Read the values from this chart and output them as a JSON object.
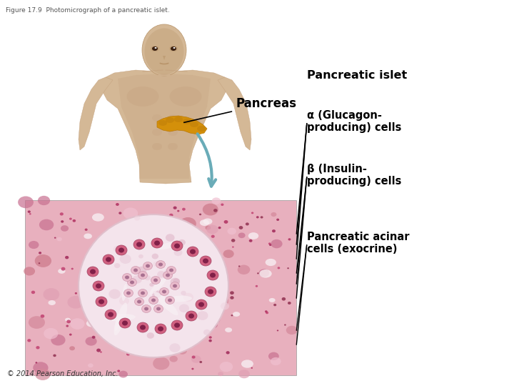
{
  "title": "Figure 17.9  Photomicrograph of a pancreatic islet.",
  "title_fontsize": 6.5,
  "title_color": "#555555",
  "background_color": "#ffffff",
  "pancreas_label": "Pancreas",
  "islet_label": "Pancreatic islet",
  "alpha_label": "α (Glucagon-\nproducing) cells",
  "beta_label": "β (Insulin-\nproducing) cells",
  "acinar_label": "Pancreatic acinar\ncells (exocrine)",
  "copyright": "© 2014 Pearson Education, Inc.",
  "arrow_color": "#000000",
  "teal_arrow_color": "#6aacb8",
  "skin_color": "#d4b896",
  "skin_dark": "#b8946a",
  "skin_shadow": "#c4a07c",
  "pancreas_color": "#d4900a",
  "pancreas_dark": "#b87808",
  "micro_bg": "#e8b0be",
  "micro_islet_bg": "#f0dce4",
  "micro_tissue": "#d4889c",
  "micro_cell_dark": "#c03060",
  "micro_cell_light": "#e8b8cc",
  "micro_white_space": "#f8eef2",
  "label_fontsize": 10.5,
  "islet_label_fontsize": 11.5,
  "copyright_fontsize": 7
}
